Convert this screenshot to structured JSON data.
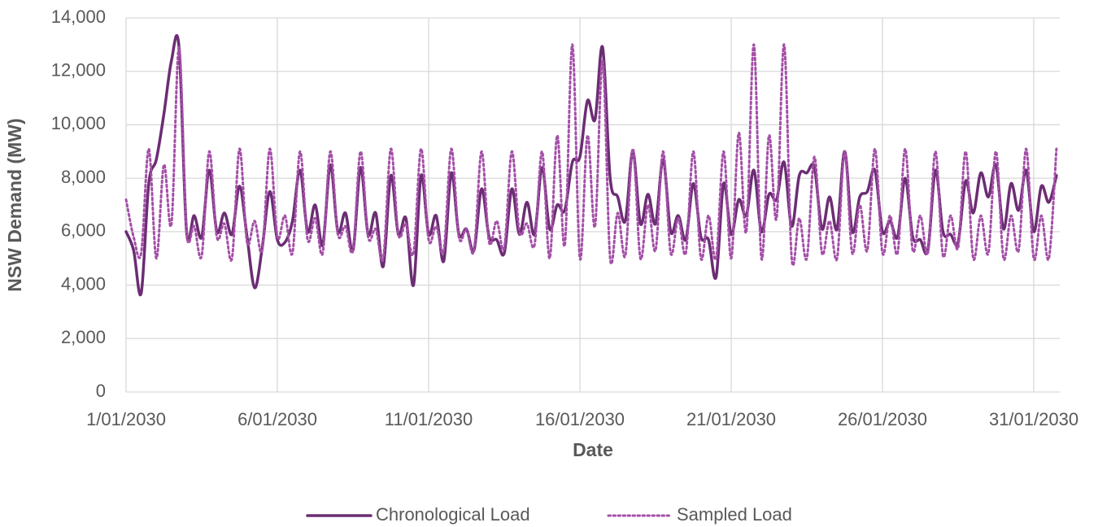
{
  "chart_data": {
    "type": "line",
    "xlabel": "Date",
    "ylabel": "NSW Demand (MW)",
    "x": [
      0,
      0.25,
      0.5,
      0.75,
      1,
      1.25,
      1.5,
      1.75,
      2,
      2.25,
      2.5,
      2.75,
      3,
      3.25,
      3.5,
      3.75,
      4,
      4.25,
      4.5,
      4.75,
      5,
      5.25,
      5.5,
      5.75,
      6,
      6.25,
      6.5,
      6.75,
      7,
      7.25,
      7.5,
      7.75,
      8,
      8.25,
      8.5,
      8.75,
      9,
      9.25,
      9.5,
      9.75,
      10,
      10.25,
      10.5,
      10.75,
      11,
      11.25,
      11.5,
      11.75,
      12,
      12.25,
      12.5,
      12.75,
      13,
      13.25,
      13.5,
      13.75,
      14,
      14.25,
      14.5,
      14.75,
      15,
      15.25,
      15.5,
      15.75,
      16,
      16.25,
      16.5,
      16.75,
      17,
      17.25,
      17.5,
      17.75,
      18,
      18.25,
      18.5,
      18.75,
      19,
      19.25,
      19.5,
      19.75,
      20,
      20.25,
      20.5,
      20.75,
      21,
      21.25,
      21.5,
      21.75,
      22,
      22.25,
      22.5,
      22.75,
      23,
      23.25,
      23.5,
      23.75,
      24,
      24.25,
      24.5,
      24.75,
      25,
      25.25,
      25.5,
      25.75,
      26,
      26.25,
      26.5,
      26.75,
      27,
      27.25,
      27.5,
      27.75,
      28,
      28.25,
      28.5,
      28.75,
      29,
      29.25,
      29.5,
      29.75,
      30,
      30.25,
      30.5,
      30.75
    ],
    "series": [
      {
        "name": "Chronological Load",
        "color": "#6b2d73",
        "dash": "solid",
        "values": [
          6000,
          5300,
          3700,
          7800,
          8700,
          10400,
          12400,
          12900,
          6000,
          6600,
          5800,
          8300,
          6000,
          6700,
          5900,
          7700,
          5800,
          3900,
          5400,
          7500,
          5700,
          5600,
          6400,
          8300,
          6000,
          7000,
          5500,
          8500,
          6000,
          6700,
          5300,
          8400,
          5900,
          6700,
          4700,
          8100,
          5900,
          6500,
          4000,
          8100,
          5900,
          6600,
          4900,
          8200,
          5900,
          6100,
          5300,
          7600,
          5800,
          5700,
          5200,
          7600,
          5900,
          7100,
          5900,
          8400,
          6100,
          7000,
          6800,
          8600,
          8800,
          10900,
          10200,
          12900,
          8000,
          7300,
          6400,
          9000,
          6300,
          7400,
          6300,
          8700,
          6000,
          6600,
          5700,
          7800,
          5800,
          5700,
          4300,
          7800,
          5900,
          7200,
          6600,
          8300,
          6000,
          7400,
          7200,
          8600,
          6200,
          8100,
          8200,
          8400,
          6100,
          7300,
          6100,
          9000,
          6000,
          7300,
          7500,
          8300,
          6000,
          6400,
          5800,
          8000,
          5800,
          5700,
          5300,
          8300,
          6000,
          5900,
          5600,
          7900,
          6700,
          8200,
          7300,
          8500,
          6100,
          7800,
          6800,
          8300,
          6000,
          7700,
          7100,
          8100
        ]
      },
      {
        "name": "Sampled Load",
        "color": "#a44fa8",
        "dash": "dotted",
        "values": [
          7200,
          5800,
          5200,
          9100,
          5000,
          8500,
          6300,
          12900,
          6000,
          6200,
          5100,
          9000,
          5800,
          6300,
          5000,
          9100,
          5600,
          6400,
          5300,
          9100,
          5800,
          6600,
          5200,
          9000,
          5700,
          6500,
          5200,
          9000,
          5900,
          6200,
          5300,
          9000,
          5800,
          6100,
          5000,
          9100,
          5900,
          6300,
          5200,
          9100,
          5700,
          6200,
          5300,
          9100,
          5800,
          6100,
          5300,
          9000,
          5600,
          6400,
          5400,
          9000,
          6000,
          6300,
          5500,
          9000,
          5000,
          9600,
          5500,
          13000,
          5000,
          9600,
          6200,
          12400,
          5000,
          6700,
          5100,
          9100,
          5000,
          7000,
          5300,
          9000,
          5200,
          6500,
          5200,
          9000,
          5000,
          6600,
          5000,
          9000,
          5000,
          9700,
          6000,
          13000,
          5000,
          9600,
          6500,
          13000,
          5000,
          6500,
          5000,
          8800,
          5200,
          6400,
          5000,
          9000,
          5200,
          7000,
          5300,
          9100,
          5200,
          6600,
          5200,
          9100,
          5300,
          6600,
          5200,
          9000,
          5100,
          6600,
          5400,
          9000,
          5000,
          6600,
          5200,
          9000,
          5000,
          6600,
          5300,
          9100,
          5000,
          6600,
          5000,
          9100
        ]
      }
    ],
    "xlim": [
      0,
      30.86
    ],
    "xticks": [
      {
        "value": 0,
        "label": "1/01/2030"
      },
      {
        "value": 5,
        "label": "6/01/2030"
      },
      {
        "value": 10,
        "label": "11/01/2030"
      },
      {
        "value": 15,
        "label": "16/01/2030"
      },
      {
        "value": 20,
        "label": "21/01/2030"
      },
      {
        "value": 25,
        "label": "26/01/2030"
      },
      {
        "value": 30,
        "label": "31/01/2030"
      }
    ],
    "ylim": [
      0,
      14000
    ],
    "yticks": [
      0,
      {
        "value": 2000,
        "label": "2,000"
      },
      {
        "value": 4000,
        "label": "4,000"
      },
      {
        "value": 6000,
        "label": "6,000"
      },
      {
        "value": 8000,
        "label": "8,000"
      },
      {
        "value": 10000,
        "label": "10,000"
      },
      {
        "value": 12000,
        "label": "12,000"
      },
      {
        "value": 14000,
        "label": "14,000"
      }
    ],
    "grid": true,
    "legend": "bottom"
  }
}
